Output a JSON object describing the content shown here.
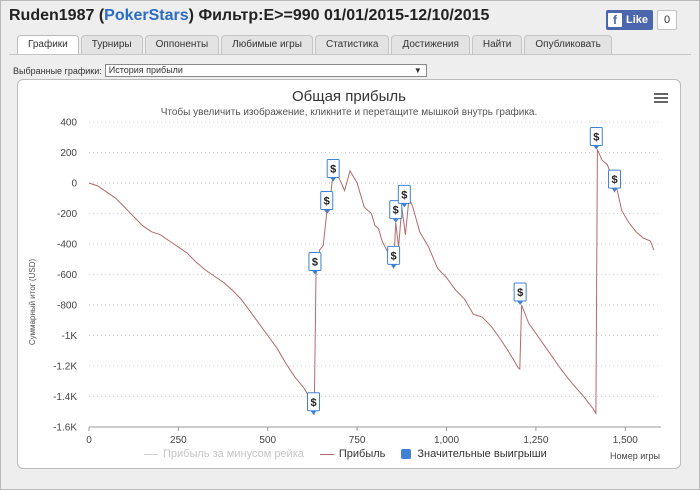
{
  "header": {
    "player": "Ruden1987",
    "open_paren": "(",
    "site": "PokerStars",
    "close_paren": ")",
    "filter": "Фильтр:E>=990 01/01/2015-12/10/2015"
  },
  "facebook": {
    "letter": "f",
    "label": "Like",
    "count": "0"
  },
  "tabs": [
    "Графики",
    "Турниры",
    "Оппоненты",
    "Любимые игры",
    "Статистика",
    "Достижения",
    "Найти",
    "Опубликовать"
  ],
  "active_tab": 0,
  "selector": {
    "label": "Выбранные графики:",
    "value": "История прибыли",
    "arrow": "▼"
  },
  "chart_data": {
    "type": "line",
    "title": "Общая прибыль",
    "subtitle": "Чтобы увеличить изображение, кликните и перетащите мышкой внутрь графика.",
    "ylabel": "Суммарный итог (USD)",
    "xlabel": "Номер игры",
    "xlim": [
      0,
      1600
    ],
    "ylim": [
      -1600,
      400
    ],
    "xticks": [
      0,
      250,
      500,
      750,
      1000,
      1250,
      1500
    ],
    "xtick_labels": [
      "0",
      "250",
      "500",
      "750",
      "1,000",
      "1,250",
      "1,500"
    ],
    "yticks": [
      400,
      200,
      0,
      -200,
      -400,
      -600,
      -800,
      -1000,
      -1200,
      -1400,
      -1600
    ],
    "ytick_labels": [
      "400",
      "200",
      "0",
      "-200",
      "-400",
      "-600",
      "-800",
      "-1K",
      "-1.2K",
      "-1.4K",
      "-1.6K"
    ],
    "grid": true,
    "legend_position": "bottom",
    "series": [
      {
        "name": "Прибыль за минусом рейка",
        "color": "#d0d0d0",
        "visible": false
      },
      {
        "name": "Прибыль",
        "color": "#b56a6a",
        "x": [
          0,
          25,
          50,
          75,
          100,
          125,
          150,
          175,
          200,
          225,
          250,
          275,
          300,
          325,
          350,
          375,
          400,
          425,
          450,
          475,
          500,
          525,
          550,
          575,
          600,
          615,
          625,
          630,
          635,
          645,
          655,
          665,
          672,
          680,
          690,
          700,
          715,
          730,
          750,
          770,
          790,
          800,
          810,
          820,
          835,
          845,
          852,
          858,
          866,
          875,
          885,
          895,
          905,
          925,
          950,
          975,
          1000,
          1025,
          1050,
          1075,
          1100,
          1125,
          1150,
          1175,
          1200,
          1205,
          1210,
          1230,
          1260,
          1290,
          1320,
          1350,
          1380,
          1410,
          1418,
          1422,
          1435,
          1450,
          1462,
          1470,
          1475,
          1490,
          1510,
          1530,
          1550,
          1570,
          1580
        ],
        "y": [
          0,
          -20,
          -60,
          -100,
          -160,
          -220,
          -280,
          -320,
          -340,
          -380,
          -420,
          -460,
          -520,
          -570,
          -610,
          -650,
          -700,
          -760,
          -840,
          -920,
          -1000,
          -1080,
          -1180,
          -1270,
          -1340,
          -1400,
          -1470,
          -1520,
          -600,
          -440,
          -410,
          -200,
          -180,
          10,
          60,
          30,
          -50,
          80,
          0,
          -160,
          -200,
          -280,
          -300,
          -380,
          -450,
          -520,
          -560,
          -260,
          -420,
          -160,
          -340,
          -100,
          -150,
          -320,
          -420,
          -560,
          -620,
          -700,
          -760,
          -860,
          -880,
          -940,
          -1020,
          -1110,
          -1210,
          -1220,
          -800,
          -920,
          -1020,
          -1120,
          -1220,
          -1310,
          -1390,
          -1480,
          -1510,
          220,
          150,
          120,
          40,
          -60,
          -20,
          -180,
          -260,
          -320,
          -360,
          -380,
          -440
        ]
      },
      {
        "name": "Значительные выигрыши",
        "color": "#3f82d4"
      }
    ],
    "markers": [
      {
        "x": 628,
        "y": -1520,
        "label": "$"
      },
      {
        "x": 632,
        "y": -600,
        "label": "$"
      },
      {
        "x": 665,
        "y": -200,
        "label": "$"
      },
      {
        "x": 683,
        "y": 10,
        "label": "$"
      },
      {
        "x": 852,
        "y": -560,
        "label": "$"
      },
      {
        "x": 858,
        "y": -260,
        "label": "$"
      },
      {
        "x": 882,
        "y": -160,
        "label": "$"
      },
      {
        "x": 1206,
        "y": -800,
        "label": "$"
      },
      {
        "x": 1419,
        "y": 220,
        "label": "$"
      },
      {
        "x": 1470,
        "y": -60,
        "label": "$"
      }
    ]
  }
}
